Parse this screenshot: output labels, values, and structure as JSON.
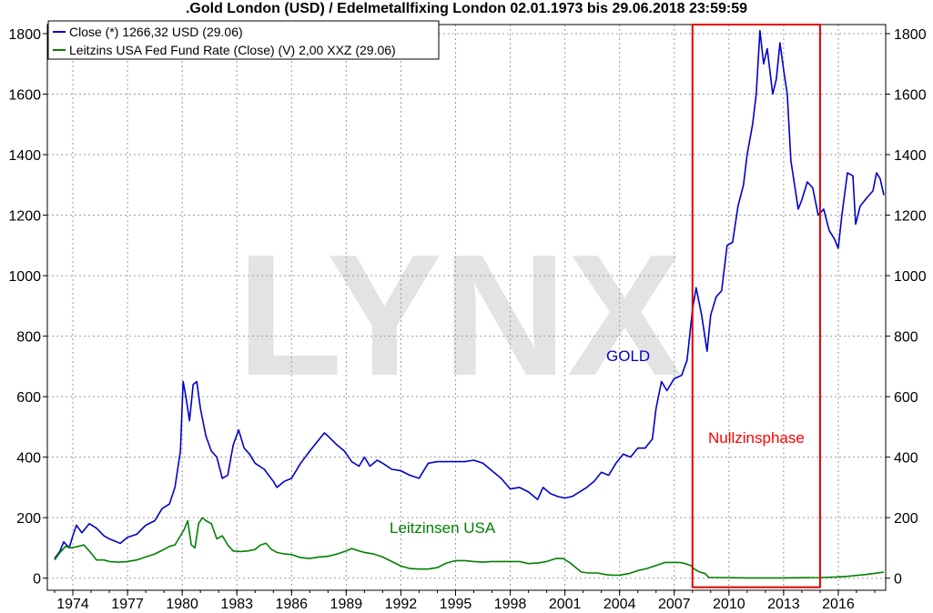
{
  "chart_data": {
    "type": "line",
    "title": ".Gold London (USD) / Edelmetallfixing London 02.01.1973 bis 29.06.2018 23:59:59",
    "watermark": "LYNX",
    "xlim": [
      1972.6,
      2018.6
    ],
    "ylim": [
      -40,
      1830
    ],
    "y_ticks": [
      0,
      200,
      400,
      600,
      800,
      1000,
      1200,
      1400,
      1600,
      1800
    ],
    "x_ticks": [
      1974,
      1977,
      1980,
      1983,
      1986,
      1989,
      1992,
      1995,
      1998,
      2001,
      2004,
      2007,
      2010,
      2013,
      2016
    ],
    "grid": true,
    "legend_position": "top-left",
    "legend": [
      {
        "label": "Close (*) 1266,32 USD (29.06)",
        "color": "#0000cc"
      },
      {
        "label": "Leitzins USA Fed Fund Rate (Close) (V) 2,00 XXZ (29.06)",
        "color": "#008000"
      }
    ],
    "annotations": [
      {
        "text": "GOLD",
        "color": "#0000cc"
      },
      {
        "text": "Leitzinsen USA",
        "color": "#008000"
      },
      {
        "text": "Nullzinsphase",
        "color": "#ff0000"
      }
    ],
    "highlight_range": {
      "x": [
        2008.0,
        2015.0
      ],
      "y": [
        -30,
        1830
      ],
      "color": "#e00000"
    },
    "series": [
      {
        "color": "#0000cc",
        "points": [
          [
            1973.0,
            65
          ],
          [
            1973.3,
            90
          ],
          [
            1973.5,
            120
          ],
          [
            1973.8,
            100
          ],
          [
            1974.0,
            140
          ],
          [
            1974.2,
            175
          ],
          [
            1974.5,
            150
          ],
          [
            1974.9,
            180
          ],
          [
            1975.3,
            165
          ],
          [
            1975.7,
            140
          ],
          [
            1976.0,
            130
          ],
          [
            1976.6,
            115
          ],
          [
            1977.0,
            135
          ],
          [
            1977.5,
            145
          ],
          [
            1978.0,
            175
          ],
          [
            1978.5,
            190
          ],
          [
            1978.9,
            230
          ],
          [
            1979.3,
            245
          ],
          [
            1979.6,
            300
          ],
          [
            1979.9,
            420
          ],
          [
            1980.05,
            650
          ],
          [
            1980.2,
            600
          ],
          [
            1980.4,
            520
          ],
          [
            1980.6,
            640
          ],
          [
            1980.8,
            650
          ],
          [
            1981.0,
            560
          ],
          [
            1981.3,
            470
          ],
          [
            1981.6,
            420
          ],
          [
            1981.9,
            400
          ],
          [
            1982.2,
            330
          ],
          [
            1982.5,
            340
          ],
          [
            1982.8,
            440
          ],
          [
            1983.1,
            490
          ],
          [
            1983.4,
            430
          ],
          [
            1983.7,
            410
          ],
          [
            1984.0,
            380
          ],
          [
            1984.5,
            360
          ],
          [
            1985.0,
            320
          ],
          [
            1985.2,
            300
          ],
          [
            1985.6,
            320
          ],
          [
            1986.0,
            330
          ],
          [
            1986.5,
            380
          ],
          [
            1987.0,
            420
          ],
          [
            1987.4,
            450
          ],
          [
            1987.8,
            480
          ],
          [
            1988.0,
            470
          ],
          [
            1988.5,
            440
          ],
          [
            1988.9,
            420
          ],
          [
            1989.3,
            385
          ],
          [
            1989.7,
            370
          ],
          [
            1990.0,
            400
          ],
          [
            1990.3,
            370
          ],
          [
            1990.7,
            390
          ],
          [
            1991.0,
            380
          ],
          [
            1991.5,
            360
          ],
          [
            1992.0,
            355
          ],
          [
            1992.5,
            340
          ],
          [
            1993.0,
            330
          ],
          [
            1993.5,
            380
          ],
          [
            1994.0,
            385
          ],
          [
            1994.5,
            385
          ],
          [
            1995.0,
            385
          ],
          [
            1995.5,
            385
          ],
          [
            1996.0,
            390
          ],
          [
            1996.5,
            380
          ],
          [
            1997.0,
            355
          ],
          [
            1997.5,
            330
          ],
          [
            1998.0,
            295
          ],
          [
            1998.5,
            300
          ],
          [
            1999.0,
            285
          ],
          [
            1999.5,
            260
          ],
          [
            1999.8,
            300
          ],
          [
            2000.2,
            280
          ],
          [
            2000.6,
            270
          ],
          [
            2001.0,
            265
          ],
          [
            2001.4,
            270
          ],
          [
            2001.8,
            285
          ],
          [
            2002.2,
            300
          ],
          [
            2002.6,
            320
          ],
          [
            2003.0,
            350
          ],
          [
            2003.4,
            340
          ],
          [
            2003.8,
            380
          ],
          [
            2004.2,
            410
          ],
          [
            2004.6,
            400
          ],
          [
            2005.0,
            430
          ],
          [
            2005.4,
            430
          ],
          [
            2005.8,
            460
          ],
          [
            2006.0,
            560
          ],
          [
            2006.3,
            650
          ],
          [
            2006.6,
            620
          ],
          [
            2007.0,
            660
          ],
          [
            2007.4,
            670
          ],
          [
            2007.7,
            720
          ],
          [
            2008.0,
            890
          ],
          [
            2008.2,
            960
          ],
          [
            2008.5,
            870
          ],
          [
            2008.8,
            750
          ],
          [
            2009.0,
            870
          ],
          [
            2009.3,
            930
          ],
          [
            2009.6,
            950
          ],
          [
            2009.9,
            1100
          ],
          [
            2010.2,
            1110
          ],
          [
            2010.5,
            1230
          ],
          [
            2010.8,
            1300
          ],
          [
            2011.0,
            1400
          ],
          [
            2011.3,
            1500
          ],
          [
            2011.5,
            1600
          ],
          [
            2011.7,
            1810
          ],
          [
            2011.9,
            1700
          ],
          [
            2012.1,
            1750
          ],
          [
            2012.4,
            1600
          ],
          [
            2012.6,
            1650
          ],
          [
            2012.8,
            1770
          ],
          [
            2013.0,
            1680
          ],
          [
            2013.2,
            1600
          ],
          [
            2013.4,
            1380
          ],
          [
            2013.6,
            1300
          ],
          [
            2013.8,
            1220
          ],
          [
            2014.0,
            1250
          ],
          [
            2014.3,
            1310
          ],
          [
            2014.6,
            1290
          ],
          [
            2014.9,
            1200
          ],
          [
            2015.2,
            1220
          ],
          [
            2015.5,
            1150
          ],
          [
            2015.8,
            1120
          ],
          [
            2016.0,
            1090
          ],
          [
            2016.2,
            1200
          ],
          [
            2016.5,
            1340
          ],
          [
            2016.8,
            1330
          ],
          [
            2016.95,
            1170
          ],
          [
            2017.2,
            1230
          ],
          [
            2017.6,
            1260
          ],
          [
            2017.9,
            1280
          ],
          [
            2018.1,
            1340
          ],
          [
            2018.3,
            1320
          ],
          [
            2018.5,
            1266
          ]
        ]
      },
      {
        "color": "#008000",
        "points": [
          [
            1973.0,
            60
          ],
          [
            1973.3,
            85
          ],
          [
            1973.6,
            105
          ],
          [
            1973.9,
            100
          ],
          [
            1974.3,
            105
          ],
          [
            1974.6,
            110
          ],
          [
            1974.9,
            90
          ],
          [
            1975.1,
            75
          ],
          [
            1975.3,
            60
          ],
          [
            1975.7,
            60
          ],
          [
            1976.0,
            55
          ],
          [
            1976.5,
            53
          ],
          [
            1977.0,
            55
          ],
          [
            1977.5,
            60
          ],
          [
            1978.0,
            70
          ],
          [
            1978.5,
            80
          ],
          [
            1979.0,
            95
          ],
          [
            1979.3,
            105
          ],
          [
            1979.6,
            110
          ],
          [
            1979.9,
            140
          ],
          [
            1980.1,
            160
          ],
          [
            1980.3,
            190
          ],
          [
            1980.5,
            110
          ],
          [
            1980.7,
            100
          ],
          [
            1980.9,
            180
          ],
          [
            1981.1,
            200
          ],
          [
            1981.3,
            190
          ],
          [
            1981.6,
            180
          ],
          [
            1981.9,
            130
          ],
          [
            1982.2,
            140
          ],
          [
            1982.5,
            110
          ],
          [
            1982.8,
            90
          ],
          [
            1983.2,
            88
          ],
          [
            1983.6,
            90
          ],
          [
            1984.0,
            95
          ],
          [
            1984.3,
            110
          ],
          [
            1984.6,
            115
          ],
          [
            1984.9,
            95
          ],
          [
            1985.2,
            85
          ],
          [
            1985.6,
            80
          ],
          [
            1986.0,
            78
          ],
          [
            1986.5,
            68
          ],
          [
            1987.0,
            65
          ],
          [
            1987.5,
            70
          ],
          [
            1988.0,
            72
          ],
          [
            1988.5,
            80
          ],
          [
            1989.0,
            90
          ],
          [
            1989.3,
            98
          ],
          [
            1989.7,
            90
          ],
          [
            1990.0,
            85
          ],
          [
            1990.5,
            80
          ],
          [
            1991.0,
            70
          ],
          [
            1991.5,
            55
          ],
          [
            1992.0,
            40
          ],
          [
            1992.5,
            32
          ],
          [
            1993.0,
            30
          ],
          [
            1993.5,
            30
          ],
          [
            1994.0,
            35
          ],
          [
            1994.5,
            50
          ],
          [
            1995.0,
            58
          ],
          [
            1995.5,
            58
          ],
          [
            1996.0,
            55
          ],
          [
            1996.5,
            53
          ],
          [
            1997.0,
            55
          ],
          [
            1997.5,
            55
          ],
          [
            1998.0,
            55
          ],
          [
            1998.5,
            55
          ],
          [
            1999.0,
            48
          ],
          [
            1999.5,
            50
          ],
          [
            2000.0,
            55
          ],
          [
            2000.5,
            65
          ],
          [
            2000.9,
            65
          ],
          [
            2001.3,
            50
          ],
          [
            2001.6,
            35
          ],
          [
            2001.9,
            20
          ],
          [
            2002.3,
            17
          ],
          [
            2002.8,
            17
          ],
          [
            2003.2,
            12
          ],
          [
            2003.6,
            10
          ],
          [
            2004.0,
            10
          ],
          [
            2004.5,
            15
          ],
          [
            2005.0,
            25
          ],
          [
            2005.5,
            32
          ],
          [
            2006.0,
            42
          ],
          [
            2006.5,
            52
          ],
          [
            2007.0,
            52
          ],
          [
            2007.3,
            52
          ],
          [
            2007.6,
            48
          ],
          [
            2007.9,
            42
          ],
          [
            2008.1,
            30
          ],
          [
            2008.4,
            20
          ],
          [
            2008.7,
            15
          ],
          [
            2008.9,
            2
          ],
          [
            2009.5,
            2
          ],
          [
            2011.0,
            1
          ],
          [
            2013.0,
            1
          ],
          [
            2015.0,
            2
          ],
          [
            2015.9,
            4
          ],
          [
            2016.5,
            6
          ],
          [
            2017.0,
            9
          ],
          [
            2017.5,
            12
          ],
          [
            2018.0,
            16
          ],
          [
            2018.5,
            20
          ]
        ]
      }
    ]
  }
}
